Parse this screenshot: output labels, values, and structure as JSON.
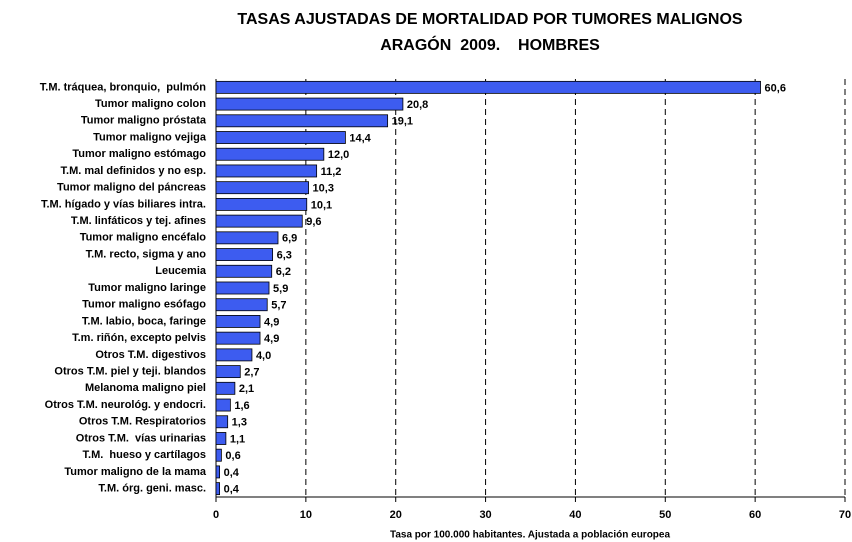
{
  "chart_data": {
    "type": "hbar",
    "title": [
      "TASAS AJUSTADAS DE MORTALIDAD POR TUMORES MALIGNOS",
      "ARAGÓN  2009.    HOMBRES"
    ],
    "x_label": "Tasa por 100.000 habitantes. Ajustada a población europea",
    "categories": [
      "T.M. tráquea, bronquio,  pulmón",
      "Tumor maligno colon",
      "Tumor maligno próstata",
      "Tumor maligno vejiga",
      "Tumor maligno estómago",
      "T.M. mal definidos y no esp.",
      "Tumor maligno del páncreas",
      "T.M. hígado y vías biliares intra.",
      "T.M. linfáticos y tej. afines",
      "Tumor maligno encéfalo",
      "T.M. recto, sigma y ano",
      "Leucemia",
      "Tumor maligno laringe",
      "Tumor maligno esófago",
      "T.M. labio, boca, faringe",
      "T.m. riñón, excepto pelvis",
      "Otros T.M. digestivos",
      "Otros T.M. piel y teji. blandos",
      "Melanoma maligno piel",
      "Otros T.M. neurológ. y endocri.",
      "Otros T.M. Respiratorios",
      "Otros T.M.  vías urinarias",
      "T.M.  hueso y cartílagos",
      "Tumor maligno de la mama",
      "T.M. órg. geni. masc."
    ],
    "values": [
      60.6,
      20.8,
      19.1,
      14.4,
      12.0,
      11.2,
      10.3,
      10.1,
      9.6,
      6.9,
      6.3,
      6.2,
      5.9,
      5.7,
      4.9,
      4.9,
      4.0,
      2.7,
      2.1,
      1.6,
      1.3,
      1.1,
      0.6,
      0.4,
      0.4
    ],
    "value_labels": [
      "60,6",
      "20,8",
      "19,1",
      "14,4",
      "12,0",
      "11,2",
      "10,3",
      "10,1",
      "9,6",
      "6,9",
      "6,3",
      "6,2",
      "5,9",
      "5,7",
      "4,9",
      "4,9",
      "4,0",
      "2,7",
      "2,1",
      "1,6",
      "1,3",
      "1,1",
      "0,6",
      "0,4",
      "0,4"
    ],
    "color": "#3d5cf0",
    "xlim": [
      0,
      70
    ],
    "xticks": [
      0,
      10,
      20,
      30,
      40,
      50,
      60,
      70
    ],
    "grid": true
  }
}
